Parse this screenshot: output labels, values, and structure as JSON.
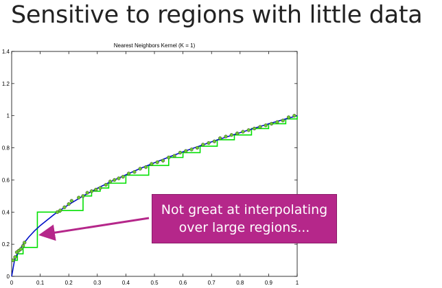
{
  "slide_title": "Sensitive to regions with little data",
  "callout": {
    "line1": "Not great at interpolating",
    "line2": "over large regions..."
  },
  "colors": {
    "true_function": "#0010c8",
    "knn_fit": "#00e000",
    "data_points": "#6cc830",
    "callout_fill": "#b5278a",
    "arrow": "#b5278a"
  },
  "chart_data": {
    "type": "line",
    "title": "Nearest Neighbors Kernel (K = 1)",
    "xlim": [
      0,
      1
    ],
    "ylim": [
      0,
      1.4
    ],
    "x_ticks": [
      0,
      0.1,
      0.2,
      0.3,
      0.4,
      0.5,
      0.6,
      0.7,
      0.8,
      0.9,
      1
    ],
    "x_tick_labels": [
      "0",
      "0.1",
      "0.2",
      "0.3",
      "0.4",
      "0.5",
      "0.6",
      "0.7",
      "0.8",
      "0.9",
      "1"
    ],
    "y_ticks": [
      0,
      0.2,
      0.4,
      0.6,
      0.8,
      1.0,
      1.2,
      1.4
    ],
    "y_tick_labels": [
      "0",
      "0.2",
      "0.4",
      "0.6",
      "0.8",
      "1",
      "1.2",
      "1.4"
    ],
    "grid": false,
    "true_function": {
      "x": [
        0,
        0.01,
        0.02,
        0.04,
        0.06,
        0.08,
        0.1,
        0.15,
        0.2,
        0.25,
        0.3,
        0.35,
        0.4,
        0.45,
        0.5,
        0.55,
        0.6,
        0.65,
        0.7,
        0.75,
        0.8,
        0.85,
        0.9,
        0.95,
        1
      ],
      "y": [
        0,
        0.1,
        0.141,
        0.2,
        0.245,
        0.283,
        0.316,
        0.387,
        0.447,
        0.5,
        0.548,
        0.592,
        0.632,
        0.671,
        0.707,
        0.742,
        0.775,
        0.806,
        0.837,
        0.866,
        0.894,
        0.922,
        0.949,
        0.975,
        1
      ]
    },
    "knn_fit": {
      "x": [
        0.01,
        0.02,
        0.04,
        0.09,
        0.17,
        0.25,
        0.28,
        0.31,
        0.34,
        0.4,
        0.48,
        0.55,
        0.6,
        0.66,
        0.72,
        0.78,
        0.84,
        0.9,
        0.96,
        1
      ],
      "y": [
        0.1,
        0.14,
        0.18,
        0.4,
        0.41,
        0.5,
        0.53,
        0.55,
        0.58,
        0.63,
        0.69,
        0.74,
        0.77,
        0.81,
        0.85,
        0.88,
        0.92,
        0.95,
        0.98,
        1
      ]
    },
    "data_points": {
      "x": [
        0.005,
        0.012,
        0.018,
        0.025,
        0.032,
        0.04,
        0.045,
        0.16,
        0.17,
        0.185,
        0.2,
        0.21,
        0.235,
        0.25,
        0.265,
        0.28,
        0.295,
        0.31,
        0.33,
        0.345,
        0.36,
        0.375,
        0.39,
        0.41,
        0.43,
        0.45,
        0.47,
        0.49,
        0.51,
        0.53,
        0.55,
        0.57,
        0.59,
        0.61,
        0.63,
        0.65,
        0.67,
        0.69,
        0.71,
        0.73,
        0.75,
        0.77,
        0.79,
        0.81,
        0.83,
        0.85,
        0.87,
        0.89,
        0.91,
        0.93,
        0.95,
        0.97,
        0.99
      ],
      "y": [
        0.1,
        0.12,
        0.15,
        0.16,
        0.17,
        0.19,
        0.21,
        0.4,
        0.41,
        0.43,
        0.45,
        0.47,
        0.49,
        0.5,
        0.52,
        0.53,
        0.54,
        0.55,
        0.57,
        0.59,
        0.6,
        0.61,
        0.62,
        0.64,
        0.65,
        0.67,
        0.68,
        0.7,
        0.71,
        0.72,
        0.74,
        0.75,
        0.77,
        0.78,
        0.79,
        0.8,
        0.82,
        0.83,
        0.84,
        0.86,
        0.87,
        0.88,
        0.89,
        0.9,
        0.91,
        0.92,
        0.93,
        0.94,
        0.95,
        0.96,
        0.97,
        0.99,
        1.0
      ]
    }
  }
}
